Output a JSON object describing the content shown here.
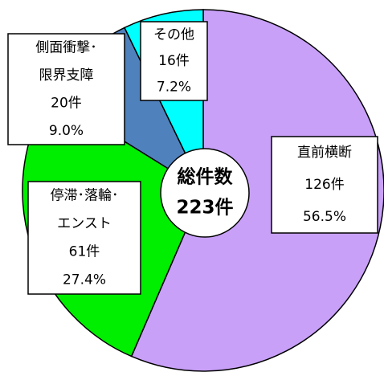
{
  "chart_data": {
    "type": "pie",
    "categories": [
      [
        "直前横断"
      ],
      [
        "停滞･落輪･",
        "エンスト"
      ],
      [
        "側面衝撃･",
        "限界支障"
      ],
      [
        "その他"
      ]
    ],
    "values": [
      126,
      61,
      20,
      16
    ],
    "value_labels": [
      "126件",
      "61件",
      "20件",
      "16件"
    ],
    "percents": [
      56.5,
      27.4,
      9.0,
      7.2
    ],
    "percent_labels": [
      "56.5%",
      "27.4%",
      "9.0%",
      "7.2%"
    ],
    "colors": [
      "#c8a0f8",
      "#00ee00",
      "#4f81bd",
      "#00ffff"
    ],
    "center_title": "総件数",
    "total": 223,
    "total_label": "223件"
  }
}
